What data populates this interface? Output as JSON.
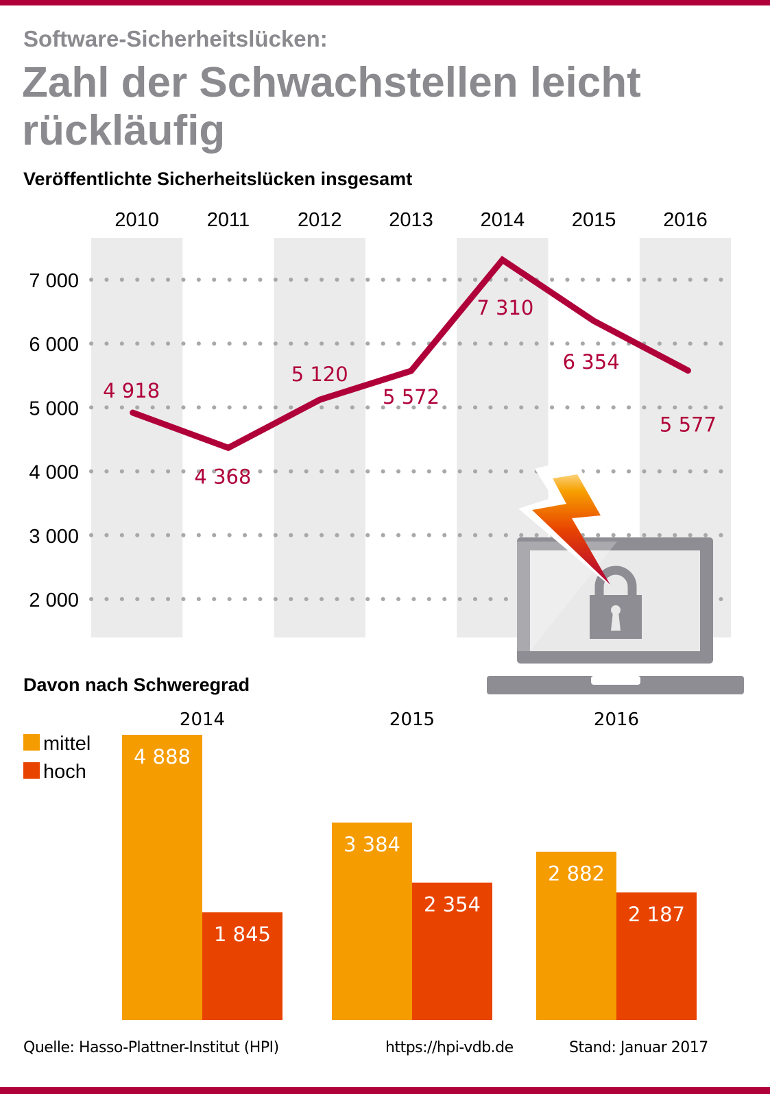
{
  "header": {
    "kicker": "Software-Sicherheitslücken:",
    "headline": "Zahl der Schwachstellen leicht rückläufig"
  },
  "colors": {
    "accent": "#b0003a",
    "headline_gray": "#8a8a8f",
    "stripe": "#ebebeb",
    "grid_dot": "#a8a8a8",
    "mittel": "#f59c00",
    "hoch": "#e84400",
    "laptop": "#8e8d93"
  },
  "chart_data": [
    {
      "type": "line",
      "title": "Veröffentlichte Sicherheitslücken insgesamt",
      "x": [
        "2010",
        "2011",
        "2012",
        "2013",
        "2014",
        "2015",
        "2016"
      ],
      "values": [
        4918,
        4368,
        5120,
        5572,
        7310,
        6354,
        5577
      ],
      "value_labels": [
        "4 918",
        "4 368",
        "5 120",
        "5 572",
        "7 310",
        "6 354",
        "5 577"
      ],
      "yticks": [
        7000,
        6000,
        5000,
        4000,
        3000,
        2000
      ],
      "ytick_labels": [
        "7 000",
        "6 000",
        "5 000",
        "4 000",
        "3 000",
        "2 000"
      ],
      "ylim": [
        1400,
        7650
      ],
      "grid": "dotted horizontal",
      "xlabel": "",
      "ylabel": "",
      "x_axis_position": "top"
    },
    {
      "type": "bar",
      "title": "Davon nach Schweregrad",
      "categories": [
        "2014",
        "2015",
        "2016"
      ],
      "series": [
        {
          "name": "mittel",
          "values": [
            4888,
            3384,
            2882
          ],
          "value_labels": [
            "4 888",
            "3 384",
            "2 882"
          ]
        },
        {
          "name": "hoch",
          "values": [
            1845,
            2354,
            2187
          ],
          "value_labels": [
            "1 845",
            "2 354",
            "2 187"
          ]
        }
      ],
      "legend": "top-left",
      "ylim": [
        0,
        4888
      ]
    }
  ],
  "illustration": {
    "icons": [
      "lightning-bolt-icon",
      "laptop-icon",
      "padlock-icon"
    ]
  },
  "footer": {
    "source": "Quelle: Hasso-Plattner-Institut (HPI)",
    "url": "https://hpi-vdb.de",
    "date": "Stand: Januar 2017"
  }
}
